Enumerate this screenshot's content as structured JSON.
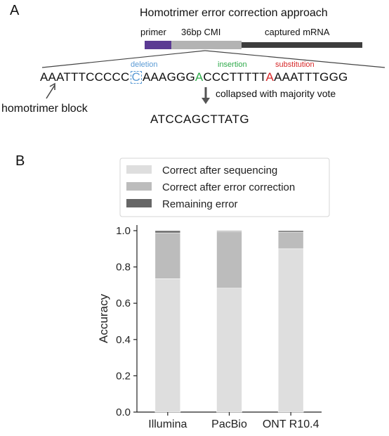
{
  "panel_a": {
    "label": "A",
    "title": "Homotrimer error correction approach",
    "segments": {
      "primer": "primer",
      "cmi": "36bp CMI",
      "mrna": "captured mRNA"
    },
    "sequence": {
      "part1": "AAATTTCCCCC",
      "deleted_base": "C",
      "part2": "AAAGGG",
      "inserted_base": "A",
      "part3": "CCCTTTTT",
      "substituted_base": "A",
      "part4": "AAATTTGGG"
    },
    "annotations": {
      "deletion": "deletion",
      "insertion": "insertion",
      "substitution": "substitution",
      "homotrimer_block": "homotrimer block",
      "collapsed": "collapsed with majority vote"
    },
    "collapsed_sequence": "ATCCAGCTTATG",
    "colors": {
      "primer": "#5b3a93",
      "cmi": "#b3b3b3",
      "mrna": "#3d3d3d",
      "deletion": "#5b9bd5",
      "insertion": "#2eaa4a",
      "substitution": "#d62728"
    }
  },
  "panel_b": {
    "label": "B"
  },
  "chart_data": {
    "type": "bar",
    "stacked": true,
    "categories": [
      "Illumina",
      "PacBio",
      "ONT R10.4"
    ],
    "series": [
      {
        "name": "Correct after sequencing",
        "values": [
          0.735,
          0.683,
          0.9
        ],
        "color": "#dedede"
      },
      {
        "name": "Correct after error correction",
        "values": [
          0.253,
          0.313,
          0.092
        ],
        "color": "#bcbcbc"
      },
      {
        "name": "Remaining error",
        "values": [
          0.012,
          0.004,
          0.008
        ],
        "color": "#666666"
      }
    ],
    "ylabel": "Accuracy",
    "ylim": [
      0,
      1.0
    ],
    "yticks": [
      "0.0",
      "0.2",
      "0.4",
      "0.6",
      "0.8",
      "1.0"
    ],
    "ytick_values": [
      0,
      0.2,
      0.4,
      0.6,
      0.8,
      1.0
    ],
    "legend_placement": "top",
    "grid": false
  }
}
